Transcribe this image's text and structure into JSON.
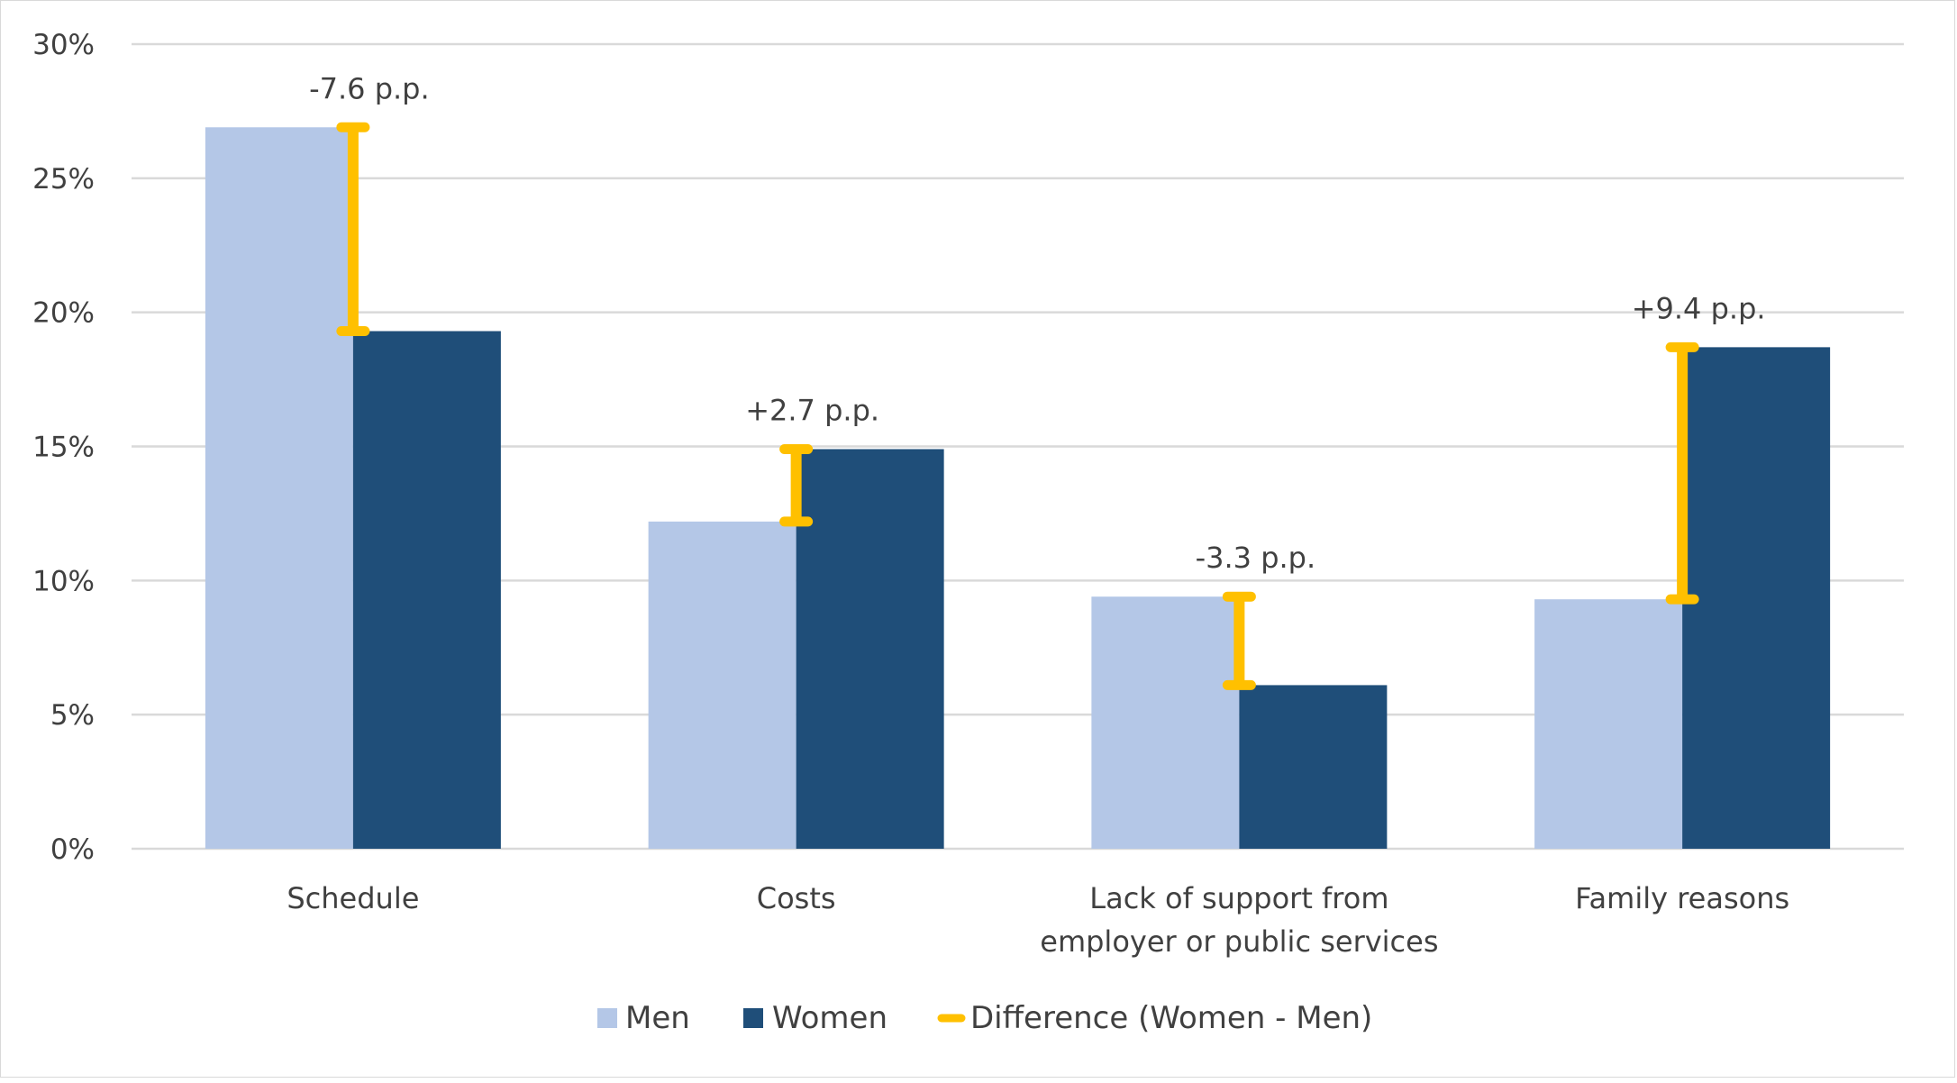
{
  "chart_data": {
    "type": "bar",
    "categories": [
      [
        "Schedule"
      ],
      [
        "Costs"
      ],
      [
        "Lack of support from",
        "employer or public services"
      ],
      [
        "Family reasons"
      ]
    ],
    "series": [
      {
        "name": "Men",
        "values": [
          26.9,
          12.2,
          9.4,
          9.3
        ],
        "color": "#b4c7e7"
      },
      {
        "name": "Women",
        "values": [
          19.3,
          14.9,
          6.1,
          18.7
        ],
        "color": "#1f4e79"
      }
    ],
    "difference": {
      "name": "Difference (Women - Men)",
      "color": "#ffc000",
      "labels": [
        "-7.6 p.p.",
        "+2.7 p.p.",
        "-3.3 p.p.",
        "+9.4 p.p."
      ]
    },
    "ylim": [
      0,
      30
    ],
    "yticks": [
      0,
      5,
      10,
      15,
      20,
      25,
      30
    ],
    "ytick_labels": [
      "0%",
      "5%",
      "10%",
      "15%",
      "20%",
      "25%",
      "30%"
    ],
    "title": "",
    "xlabel": "",
    "ylabel": "",
    "grid": true,
    "legend_position": "bottom"
  }
}
